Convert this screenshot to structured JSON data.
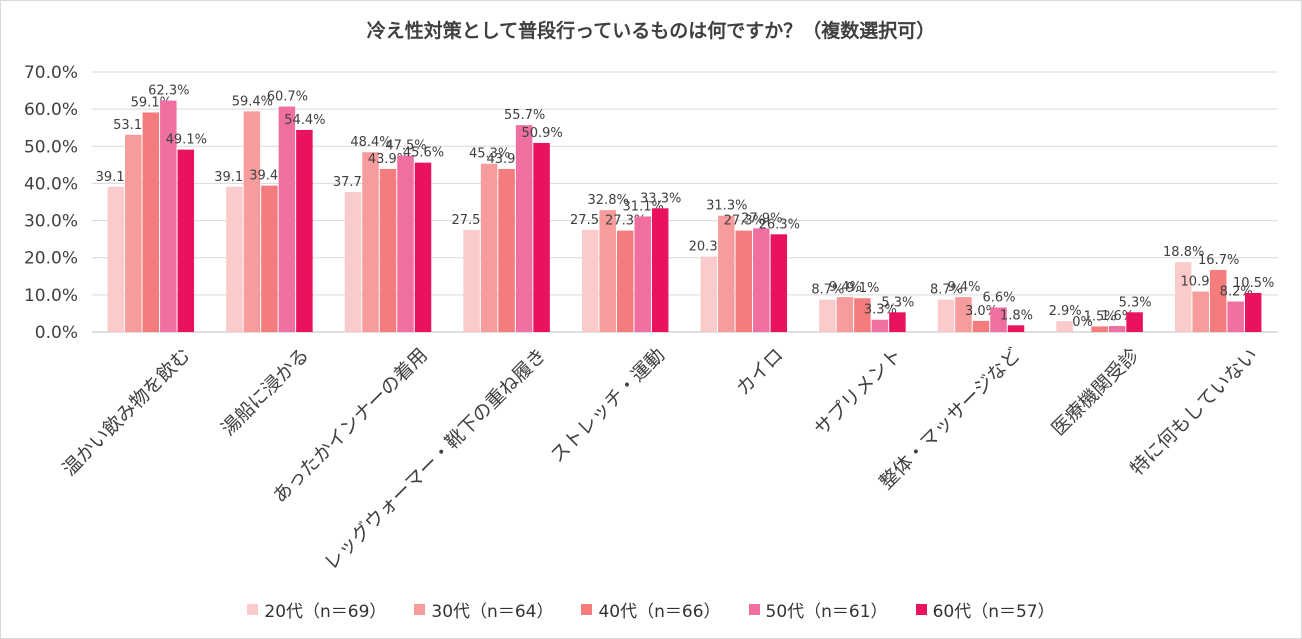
{
  "chart_data": {
    "type": "bar",
    "title": "冷え性対策として普段行っているものは何ですか？（複数選択可）",
    "categories": [
      "温かい飲み物を飲む",
      "湯船に浸かる",
      "あったかインナーの着用",
      "レッグウォーマー・靴下の重ね履き",
      "ストレッチ・運動",
      "カイロ",
      "サプリメント",
      "整体・マッサージなど",
      "医療機関受診",
      "特に何もしていない"
    ],
    "series": [
      {
        "name": "20代（n＝69）",
        "color": "#fbcbcb",
        "values": [
          39.1,
          39.1,
          37.7,
          27.5,
          27.5,
          20.3,
          8.7,
          8.7,
          2.9,
          18.8
        ],
        "labels": [
          "39.1%",
          "39.1%",
          "37.7%",
          "27.5%",
          "27.5%",
          "20.3%",
          "8.7%",
          "8.7%",
          "2.9%",
          "18.8%"
        ]
      },
      {
        "name": "30代（n＝64）",
        "color": "#f79c9c",
        "values": [
          53.1,
          59.4,
          48.4,
          45.3,
          32.8,
          31.3,
          9.4,
          9.4,
          0,
          10.9
        ],
        "labels": [
          "53.1%",
          "59.4%",
          "48.4%",
          "45.3%",
          "32.8%",
          "31.3%",
          "9.4%",
          "9.4%",
          "0%",
          "10.9%"
        ]
      },
      {
        "name": "40代（n＝66）",
        "color": "#f47c7c",
        "values": [
          59.1,
          39.4,
          43.9,
          43.9,
          27.3,
          27.3,
          9.1,
          3.0,
          1.5,
          16.7
        ],
        "labels": [
          "59.1%",
          "39.4%",
          "43.9%",
          "43.9%",
          "27.3%",
          "27.3%",
          "9.1%",
          "3.0%",
          "1.5%",
          "16.7%"
        ]
      },
      {
        "name": "50代（n＝61）",
        "color": "#f06fa1",
        "values": [
          62.3,
          60.7,
          47.5,
          55.7,
          31.1,
          27.9,
          3.3,
          6.6,
          1.6,
          8.2
        ],
        "labels": [
          "62.3%",
          "60.7%",
          "47.5%",
          "55.7%",
          "31.1%",
          "27.9%",
          "3.3%",
          "6.6%",
          "1.6%",
          "8.2%"
        ]
      },
      {
        "name": "60代（n＝57）",
        "color": "#e8125f",
        "values": [
          49.1,
          54.4,
          45.6,
          50.9,
          33.3,
          26.3,
          5.3,
          1.8,
          5.3,
          10.5
        ],
        "labels": [
          "49.1%",
          "54.4%",
          "45.6%",
          "50.9%",
          "33.3%",
          "26.3%",
          "5.3%",
          "1.8%",
          "5.3%",
          "10.5%"
        ]
      }
    ],
    "yticks": [
      "0.0%",
      "10.0%",
      "20.0%",
      "30.0%",
      "40.0%",
      "50.0%",
      "60.0%",
      "70.0%"
    ],
    "ylim": [
      0,
      70
    ],
    "grid": true,
    "legend": "bottom"
  }
}
